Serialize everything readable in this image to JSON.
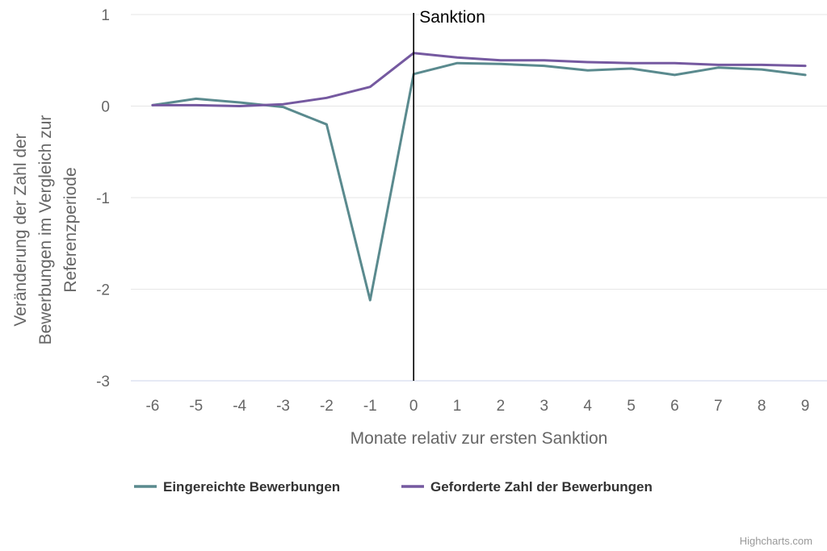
{
  "chart_data": {
    "type": "line",
    "xlabel": "Monate relativ zur ersten Sanktion",
    "ylabel_lines": [
      "Veränderung der Zahl der",
      "Bewerbungen im Vergleich zur",
      "Referenzperiode"
    ],
    "x": [
      -6,
      -5,
      -4,
      -3,
      -2,
      -1,
      0,
      1,
      2,
      3,
      4,
      5,
      6,
      7,
      8,
      9
    ],
    "x_tick_labels": [
      "-6",
      "-5",
      "-4",
      "-3",
      "-2",
      "-1",
      "0",
      "1",
      "2",
      "3",
      "4",
      "5",
      "6",
      "7",
      "8",
      "9"
    ],
    "y_ticks": [
      1,
      0,
      -1,
      -2,
      -3
    ],
    "y_tick_labels": [
      "1",
      "0",
      "-1",
      "-2",
      "-3"
    ],
    "ylim": [
      -3,
      1
    ],
    "xlim": [
      -6.5,
      9.5
    ],
    "grid": "horizontal",
    "legend": "bottom-left",
    "plot_line": {
      "x": 0,
      "label": "Sanktion",
      "color": "#000000"
    },
    "series": [
      {
        "name": "Eingereichte Bewerbungen",
        "color": "#5a8a8e",
        "values": [
          0.01,
          0.08,
          0.04,
          -0.01,
          -0.2,
          -2.12,
          0.35,
          0.47,
          0.46,
          0.44,
          0.39,
          0.41,
          0.34,
          0.42,
          0.4,
          0.34
        ]
      },
      {
        "name": "Geforderte Zahl der Bewerbungen",
        "color": "#7559a0",
        "values": [
          0.01,
          0.01,
          0.0,
          0.02,
          0.09,
          0.21,
          0.58,
          0.53,
          0.5,
          0.5,
          0.48,
          0.47,
          0.47,
          0.45,
          0.45,
          0.44
        ]
      }
    ]
  },
  "credits": "Highcharts.com"
}
